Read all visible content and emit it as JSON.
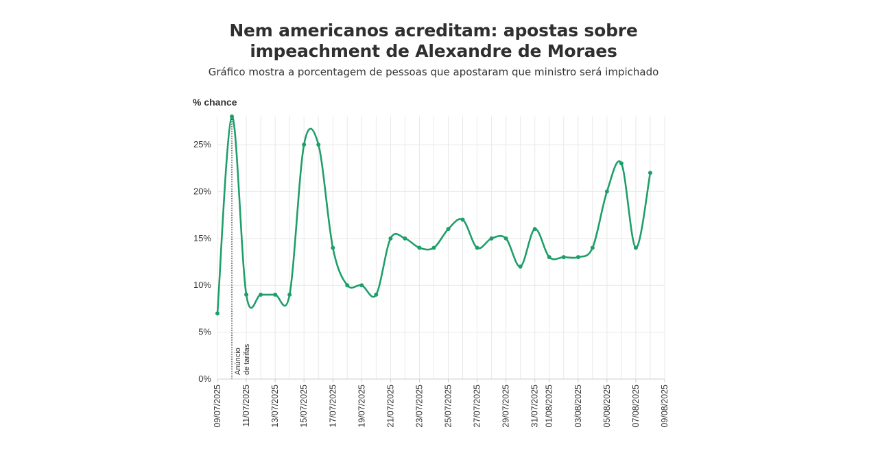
{
  "title_line1": "Nem americanos acreditam: apostas sobre",
  "title_line2": "impeachment de Alexandre de Moraes",
  "subtitle": "Gráfico mostra a porcentagem de pessoas que apostaram que ministro será impichado",
  "colors": {
    "line": "#1f9e6a",
    "grid": "#e8e8e8",
    "axis": "#cccccc",
    "text": "#333333"
  },
  "chart_data": {
    "type": "line",
    "ylabel": "% chance",
    "ylim": [
      0,
      28
    ],
    "yticks": [
      0,
      5,
      10,
      15,
      20,
      25
    ],
    "ytick_labels": [
      "0%",
      "5%",
      "10%",
      "15%",
      "20%",
      "25%"
    ],
    "xlim": [
      "2025-07-09",
      "2025-08-09"
    ],
    "xticks": [
      "2025-07-09",
      "2025-07-11",
      "2025-07-13",
      "2025-07-15",
      "2025-07-17",
      "2025-07-19",
      "2025-07-21",
      "2025-07-23",
      "2025-07-25",
      "2025-07-27",
      "2025-07-29",
      "2025-07-31",
      "2025-08-01",
      "2025-08-03",
      "2025-08-05",
      "2025-08-07",
      "2025-08-09"
    ],
    "xtick_labels": [
      "09/07/2025",
      "11/07/2025",
      "13/07/2025",
      "15/07/2025",
      "17/07/2025",
      "19/07/2025",
      "21/07/2025",
      "23/07/2025",
      "25/07/2025",
      "27/07/2025",
      "29/07/2025",
      "31/07/2025",
      "01/08/2025",
      "03/08/2025",
      "05/08/2025",
      "07/08/2025",
      "09/08/2025"
    ],
    "grid": true,
    "series": [
      {
        "values": [
          [
            "2025-07-09",
            7
          ],
          [
            "2025-07-10",
            28
          ],
          [
            "2025-07-11",
            9
          ],
          [
            "2025-07-12",
            9
          ],
          [
            "2025-07-13",
            9
          ],
          [
            "2025-07-14",
            9
          ],
          [
            "2025-07-15",
            25
          ],
          [
            "2025-07-16",
            25
          ],
          [
            "2025-07-17",
            14
          ],
          [
            "2025-07-18",
            10
          ],
          [
            "2025-07-19",
            10
          ],
          [
            "2025-07-20",
            9
          ],
          [
            "2025-07-21",
            15
          ],
          [
            "2025-07-22",
            15
          ],
          [
            "2025-07-23",
            14
          ],
          [
            "2025-07-24",
            14
          ],
          [
            "2025-07-25",
            16
          ],
          [
            "2025-07-26",
            17
          ],
          [
            "2025-07-27",
            14
          ],
          [
            "2025-07-28",
            15
          ],
          [
            "2025-07-29",
            15
          ],
          [
            "2025-07-30",
            12
          ],
          [
            "2025-07-31",
            16
          ],
          [
            "2025-08-01",
            13
          ],
          [
            "2025-08-02",
            13
          ],
          [
            "2025-08-03",
            13
          ],
          [
            "2025-08-04",
            14
          ],
          [
            "2025-08-05",
            20
          ],
          [
            "2025-08-06",
            23
          ],
          [
            "2025-08-07",
            14
          ],
          [
            "2025-08-08",
            22
          ]
        ]
      }
    ],
    "annotations": [
      {
        "x": "2025-07-10",
        "line1": "Anúncio",
        "line2": "de tarifas",
        "style": "dotted vertical line"
      }
    ]
  }
}
